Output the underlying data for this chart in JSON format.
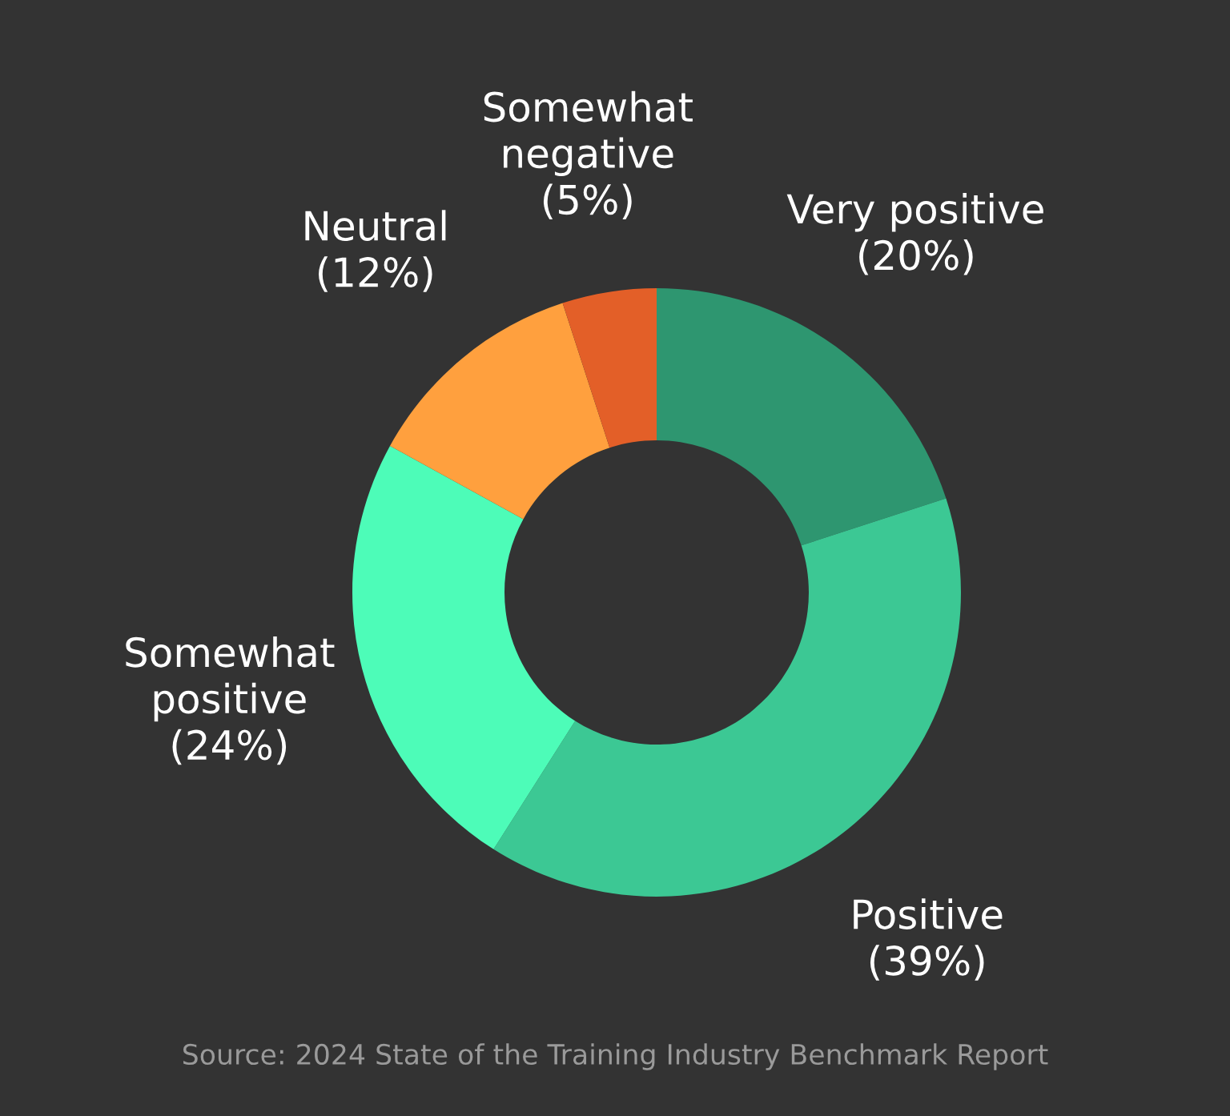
{
  "chart_data": {
    "type": "donut",
    "categories": [
      "Very positive",
      "Positive",
      "Somewhat positive",
      "Neutral",
      "Somewhat negative"
    ],
    "values": [
      20,
      39,
      24,
      12,
      5
    ],
    "value_labels": [
      "(20%)",
      "(39%)",
      "(24%)",
      "(12%)",
      "(5%)"
    ],
    "colors": [
      "#2e9670",
      "#3cc894",
      "#4dfcb8",
      "#ffa03e",
      "#e35f28"
    ],
    "annotations": [
      "Source: 2024 State of the Training Industry Benchmark Report"
    ],
    "legend": false
  }
}
